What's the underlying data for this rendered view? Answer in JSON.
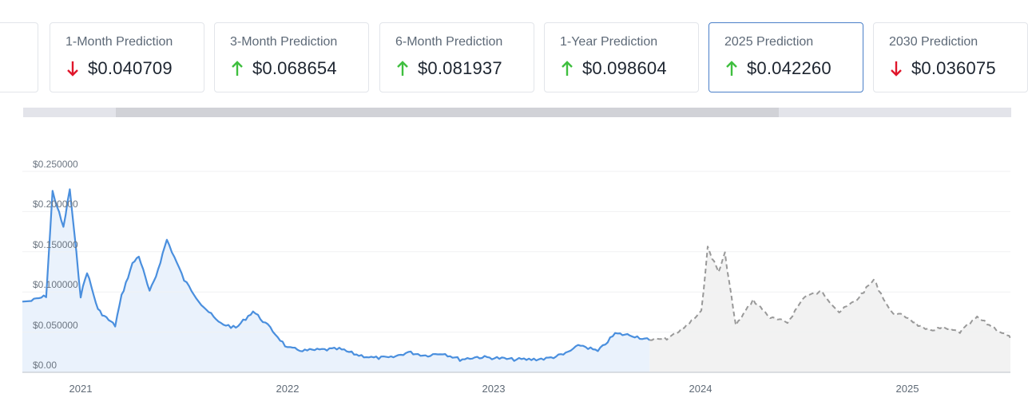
{
  "cards": [
    {
      "label": "",
      "value": "",
      "direction": "",
      "partial": true
    },
    {
      "label": "1-Month Prediction",
      "value": "$0.040709",
      "direction": "down"
    },
    {
      "label": "3-Month Prediction",
      "value": "$0.068654",
      "direction": "up"
    },
    {
      "label": "6-Month Prediction",
      "value": "$0.081937",
      "direction": "up"
    },
    {
      "label": "1-Year Prediction",
      "value": "$0.098604",
      "direction": "up"
    },
    {
      "label": "2025 Prediction",
      "value": "$0.042260",
      "direction": "up",
      "active": true
    },
    {
      "label": "2030 Prediction",
      "value": "$0.036075",
      "direction": "down"
    }
  ],
  "colors": {
    "up": "#3fbf3f",
    "down": "#e0162b",
    "historical_line": "#4a8fde",
    "historical_fill": "#eaf2fc",
    "forecast_line": "#999999",
    "forecast_fill": "#f2f2f2",
    "active_border": "#4a7fc8"
  },
  "scrollbar": {
    "thumb_start_pct": 9.4,
    "thumb_end_pct": 76.5
  },
  "chart_data": {
    "type": "line",
    "title": "",
    "xlabel": "",
    "ylabel": "",
    "ylim": [
      0,
      0.25
    ],
    "grid": true,
    "y_ticks": [
      "$0.00",
      "$0.050000",
      "$0.100000",
      "$0.150000",
      "$0.200000",
      "$0.250000"
    ],
    "x_ticks": [
      "2021",
      "2022",
      "2023",
      "2024",
      "2025"
    ],
    "legend": null,
    "series": [
      {
        "name": "Historical price",
        "style": "solid",
        "x": [
          "2020-10",
          "2020-11",
          "2020-11",
          "2020-12",
          "2020-12",
          "2021-01",
          "2021-01",
          "2021-02",
          "2021-02",
          "2021-03",
          "2021-03",
          "2021-04",
          "2021-04",
          "2021-05",
          "2021-05",
          "2021-06",
          "2021-07",
          "2021-08",
          "2021-09",
          "2021-10",
          "2021-11",
          "2021-12",
          "2022-01",
          "2022-02",
          "2022-03",
          "2022-04",
          "2022-05",
          "2022-06",
          "2022-07",
          "2022-08",
          "2022-09",
          "2022-10",
          "2022-11",
          "2022-12",
          "2023-01",
          "2023-02",
          "2023-03",
          "2023-04",
          "2023-05",
          "2023-06",
          "2023-07",
          "2023-08",
          "2023-09",
          "2023-10"
        ],
        "values": [
          0.088,
          0.095,
          0.225,
          0.18,
          0.228,
          0.095,
          0.125,
          0.078,
          0.07,
          0.058,
          0.095,
          0.135,
          0.145,
          0.1,
          0.12,
          0.165,
          0.115,
          0.085,
          0.062,
          0.055,
          0.076,
          0.055,
          0.03,
          0.027,
          0.028,
          0.029,
          0.022,
          0.018,
          0.018,
          0.025,
          0.021,
          0.024,
          0.016,
          0.019,
          0.018,
          0.016,
          0.016,
          0.017,
          0.022,
          0.034,
          0.026,
          0.048,
          0.046,
          0.04
        ],
        "fill": true
      },
      {
        "name": "Forecast",
        "style": "dashed",
        "x": [
          "2023-10",
          "2023-11",
          "2023-12",
          "2024-01",
          "2024-01",
          "2024-02",
          "2024-02",
          "2024-03",
          "2024-04",
          "2024-05",
          "2024-06",
          "2024-07",
          "2024-08",
          "2024-09",
          "2024-10",
          "2024-11",
          "2024-12",
          "2025-01",
          "2025-02",
          "2025-03",
          "2025-04",
          "2025-05",
          "2025-06",
          "2025-07"
        ],
        "values": [
          0.04,
          0.042,
          0.055,
          0.075,
          0.155,
          0.125,
          0.148,
          0.058,
          0.09,
          0.068,
          0.062,
          0.095,
          0.1,
          0.075,
          0.09,
          0.115,
          0.075,
          0.068,
          0.052,
          0.055,
          0.05,
          0.068,
          0.055,
          0.042
        ],
        "fill": true
      }
    ]
  }
}
